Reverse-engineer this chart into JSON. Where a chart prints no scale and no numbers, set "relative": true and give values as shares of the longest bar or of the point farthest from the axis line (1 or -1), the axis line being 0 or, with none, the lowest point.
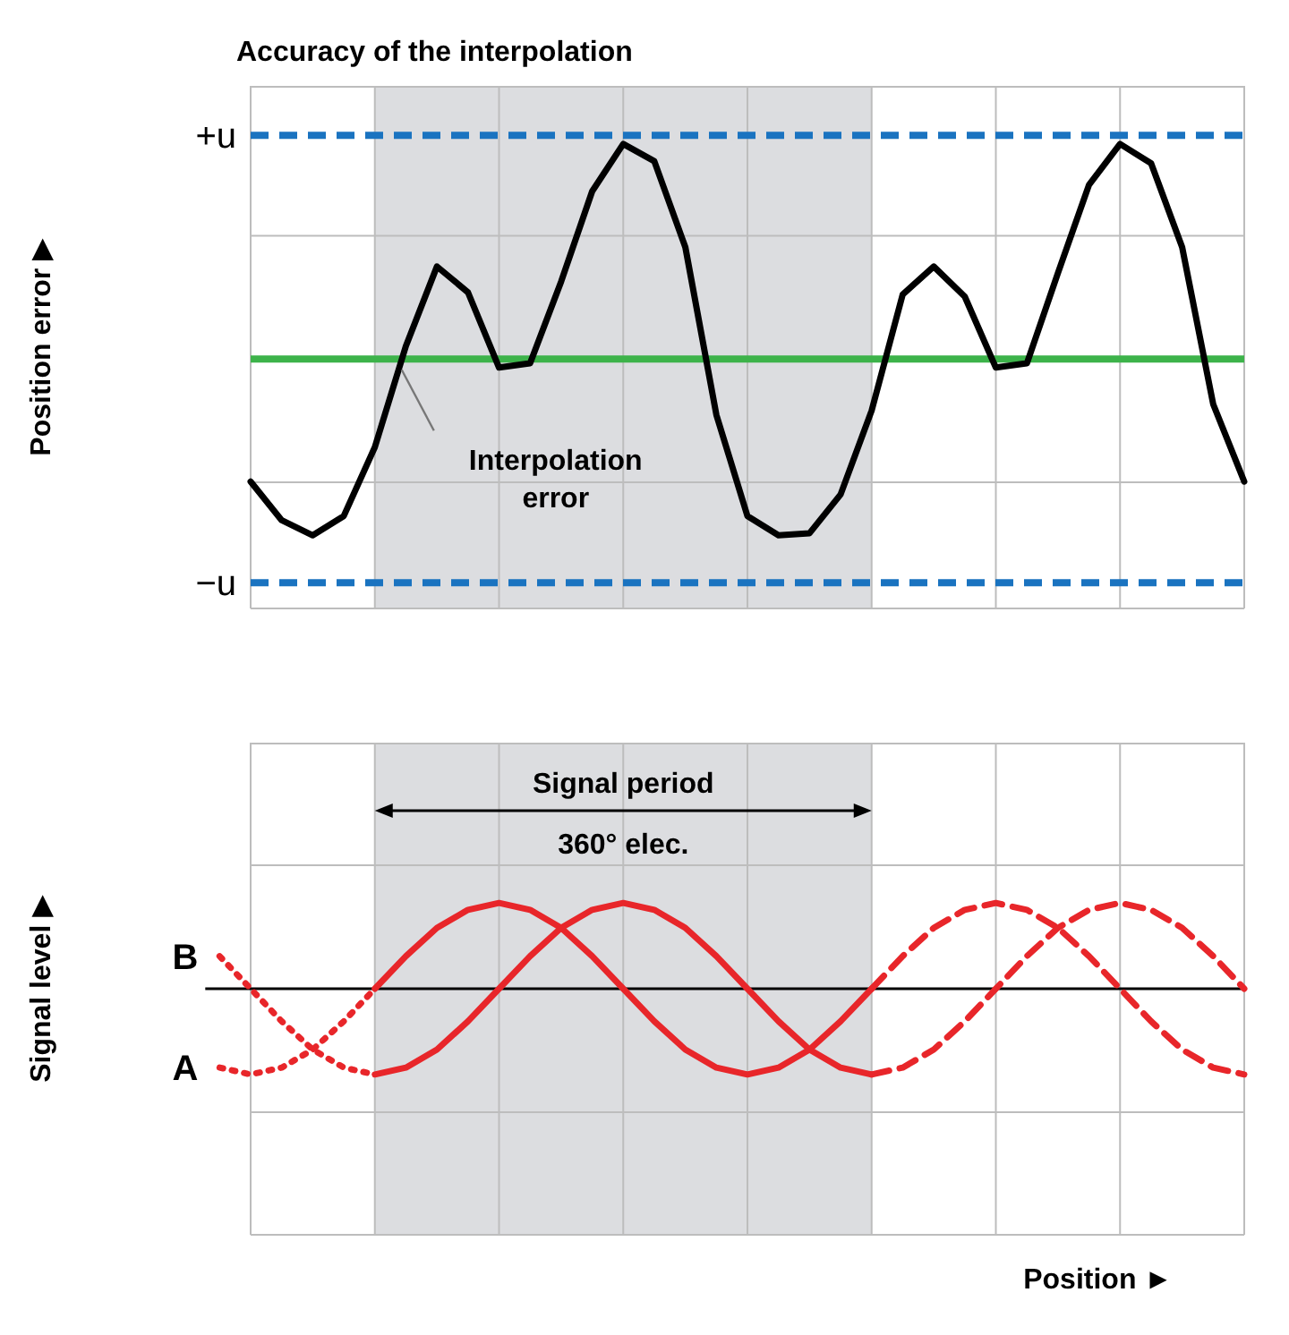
{
  "chart_data": [
    {
      "type": "line",
      "title": "Accuracy of the interpolation",
      "ylabel": "Position error ▶",
      "categories": [
        null,
        null,
        null,
        null,
        null,
        null,
        null,
        null,
        null,
        null,
        null,
        null,
        null,
        null,
        null,
        null,
        null,
        null,
        null,
        null,
        null,
        null,
        null,
        null,
        null,
        null,
        null,
        null,
        null,
        null,
        null,
        null,
        null
      ],
      "relative": true,
      "grid": "x",
      "ref_lines": [
        {
          "axis": "y",
          "value": 1.04,
          "label": "+u",
          "color": "#1a73c0",
          "line_style": "dashed"
        },
        {
          "axis": "y",
          "value": -1.04,
          "label": "−u",
          "color": "#1a73c0",
          "line_style": "dashed"
        },
        {
          "axis": "y",
          "value": 0,
          "color": "#3db34a",
          "line_style": "solid"
        }
      ],
      "annotations": [
        "Interpolation error"
      ],
      "series": [
        {
          "color": "#000000",
          "values": [
            -0.57,
            -0.75,
            -0.82,
            -0.73,
            -0.41,
            0.06,
            0.43,
            0.31,
            -0.04,
            -0.02,
            0.36,
            0.78,
            1,
            0.92,
            0.52,
            -0.26,
            -0.73,
            -0.82,
            -0.81,
            -0.63,
            -0.24,
            0.3,
            0.43,
            0.29,
            -0.04,
            -0.02,
            0.4,
            0.81,
            1,
            0.91,
            0.52,
            -0.21,
            -0.57
          ]
        }
      ]
    },
    {
      "type": "line",
      "ylabel": "Signal level ▶",
      "xlabel": "Position ►",
      "relative": true,
      "categories": [
        null,
        null,
        null,
        null,
        null,
        null,
        null,
        null,
        null,
        null,
        null,
        null,
        null,
        null,
        null,
        null,
        null,
        null,
        null,
        null,
        null,
        null,
        null,
        null,
        null,
        null,
        null,
        null,
        null,
        null,
        null,
        null,
        null,
        null
      ],
      "grid": "x",
      "annotations": [
        "Signal period",
        "360° elec."
      ],
      "series": [
        {
          "name": "B",
          "color": "#e8262a",
          "line_style": "dotted",
          "values": [
            0.38,
            0,
            -0.38,
            -0.71,
            -0.92,
            -1,
            null,
            null,
            null,
            null,
            null,
            null,
            null,
            null,
            null,
            null,
            null,
            null,
            null,
            null,
            null,
            null,
            null,
            null,
            null,
            null,
            null,
            null,
            null,
            null,
            null,
            null,
            null,
            null
          ]
        },
        {
          "name": "A",
          "color": "#e8262a",
          "line_style": "dotted",
          "values": [
            -0.92,
            -1,
            -0.92,
            -0.71,
            -0.38,
            0,
            null,
            null,
            null,
            null,
            null,
            null,
            null,
            null,
            null,
            null,
            null,
            null,
            null,
            null,
            null,
            null,
            null,
            null,
            null,
            null,
            null,
            null,
            null,
            null,
            null,
            null,
            null,
            null
          ]
        },
        {
          "color": "#e8262a",
          "line_style": "solid",
          "values": [
            null,
            null,
            null,
            null,
            null,
            0,
            0.38,
            0.71,
            0.92,
            1,
            0.92,
            0.71,
            0.38,
            0,
            -0.38,
            -0.71,
            -0.92,
            -1,
            -0.92,
            -0.71,
            -0.38,
            0,
            null,
            null,
            null,
            null,
            null,
            null,
            null,
            null,
            null,
            null,
            null,
            null
          ]
        },
        {
          "color": "#e8262a",
          "line_style": "solid",
          "values": [
            null,
            null,
            null,
            null,
            null,
            -1,
            -0.92,
            -0.71,
            -0.38,
            0,
            0.38,
            0.71,
            0.92,
            1,
            0.92,
            0.71,
            0.38,
            0,
            -0.38,
            -0.71,
            -0.92,
            -1,
            null,
            null,
            null,
            null,
            null,
            null,
            null,
            null,
            null,
            null,
            null,
            null
          ]
        },
        {
          "color": "#e8262a",
          "line_style": "dashed",
          "values": [
            null,
            null,
            null,
            null,
            null,
            null,
            null,
            null,
            null,
            null,
            null,
            null,
            null,
            null,
            null,
            null,
            null,
            null,
            null,
            null,
            null,
            0,
            0.38,
            0.71,
            0.92,
            1,
            0.92,
            0.71,
            0.38,
            0,
            -0.38,
            -0.71,
            -0.92,
            -1
          ]
        },
        {
          "color": "#e8262a",
          "line_style": "dashed",
          "values": [
            null,
            null,
            null,
            null,
            null,
            null,
            null,
            null,
            null,
            null,
            null,
            null,
            null,
            null,
            null,
            null,
            null,
            null,
            null,
            null,
            null,
            -1,
            -0.92,
            -0.71,
            -0.38,
            0,
            0.38,
            0.71,
            0.92,
            1,
            0.92,
            0.71,
            0.38,
            0
          ]
        }
      ]
    }
  ]
}
